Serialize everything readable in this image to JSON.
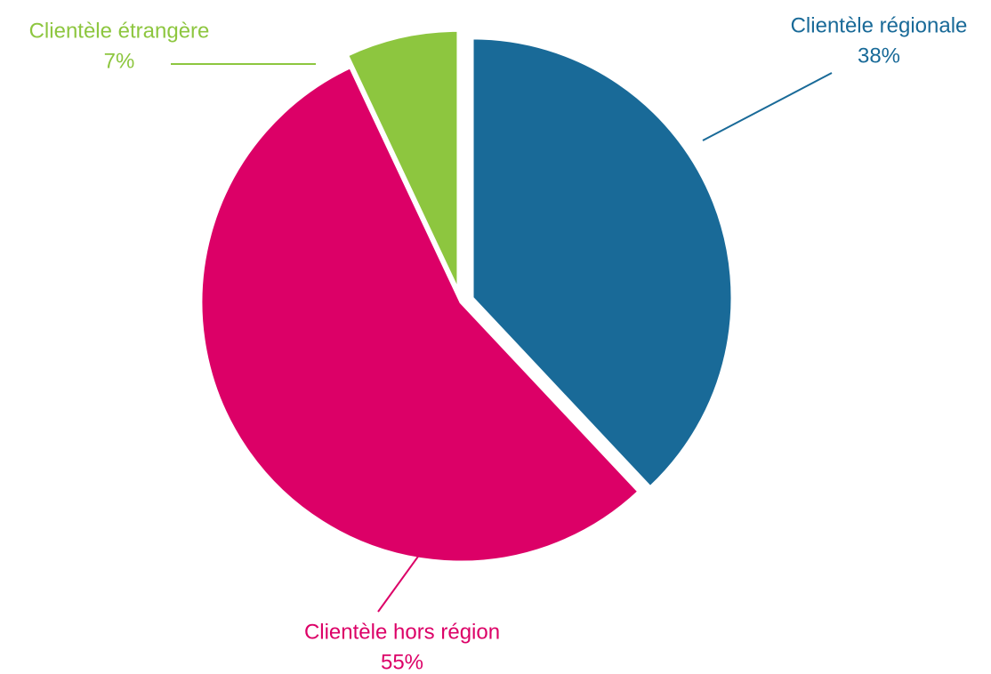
{
  "chart_data": {
    "type": "pie",
    "categories": [
      "Clientèle régionale",
      "Clientèle hors région",
      "Clientèle étrangère"
    ],
    "values": [
      38,
      55,
      7
    ],
    "value_labels": [
      "38%",
      "55%",
      "7%"
    ],
    "colors": [
      "#196a98",
      "#dc0067",
      "#8dc63f"
    ]
  }
}
